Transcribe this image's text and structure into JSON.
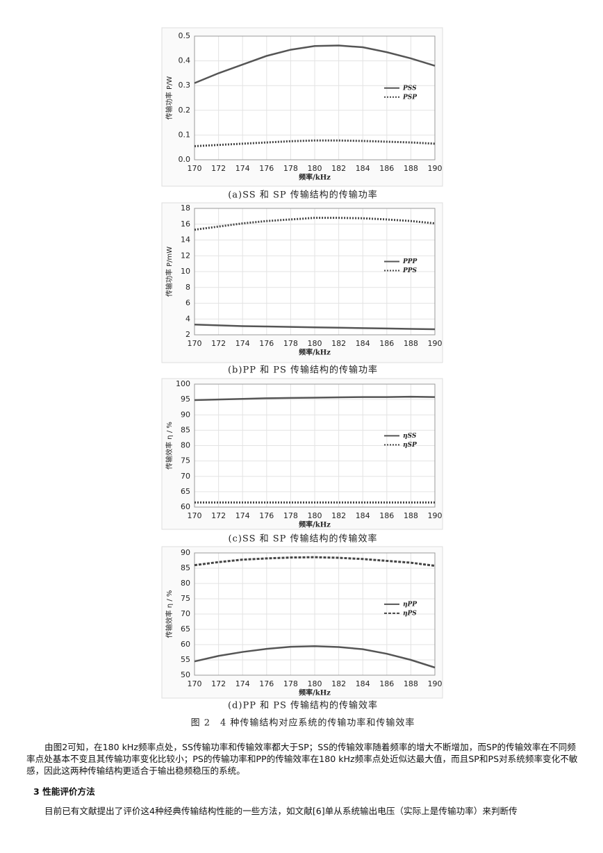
{
  "chart_data": [
    {
      "type": "line",
      "xlabel": "频率/kHz",
      "ylabel": "传输功率 P/W",
      "caption": "(a)SS 和 SP 传输结构的传输功率",
      "x": [
        170,
        172,
        174,
        176,
        178,
        180,
        182,
        184,
        186,
        188,
        190
      ],
      "xlim": [
        170,
        190
      ],
      "xticks": [
        170,
        172,
        174,
        176,
        178,
        180,
        182,
        184,
        186,
        188,
        190
      ],
      "ylim": [
        0,
        0.5
      ],
      "yticks": [
        {
          "value": 0,
          "label": "0.0"
        },
        0.1,
        0.2,
        0.3,
        0.4,
        0.5
      ],
      "grid": true,
      "legend": "right",
      "series": [
        {
          "name": "PSS",
          "color": "#555555",
          "line_style": "solid",
          "values": [
            0.31,
            0.35,
            0.385,
            0.42,
            0.445,
            0.46,
            0.462,
            0.455,
            0.435,
            0.41,
            0.38
          ]
        },
        {
          "name": "PSP",
          "color": "#444444",
          "line_style": "dotted",
          "values": [
            0.055,
            0.06,
            0.065,
            0.07,
            0.075,
            0.078,
            0.078,
            0.076,
            0.073,
            0.07,
            0.065
          ]
        }
      ]
    },
    {
      "type": "line",
      "xlabel": "频率/kHz",
      "ylabel": "传输功率 P/mW",
      "caption": "(b)PP 和 PS 传输结构的传输功率",
      "x": [
        170,
        172,
        174,
        176,
        178,
        180,
        182,
        184,
        186,
        188,
        190
      ],
      "xlim": [
        170,
        190
      ],
      "xticks": [
        170,
        172,
        174,
        176,
        178,
        180,
        182,
        184,
        186,
        188,
        190
      ],
      "ylim": [
        2,
        18
      ],
      "yticks": [
        2,
        4,
        6,
        8,
        10,
        12,
        14,
        16,
        18
      ],
      "grid": true,
      "legend": "right",
      "series": [
        {
          "name": "PPP",
          "color": "#555555",
          "line_style": "solid",
          "values": [
            3.3,
            3.2,
            3.1,
            3.05,
            3.0,
            2.95,
            2.9,
            2.85,
            2.8,
            2.75,
            2.7
          ]
        },
        {
          "name": "PPS",
          "color": "#444444",
          "line_style": "dotted",
          "values": [
            15.3,
            15.7,
            16.1,
            16.4,
            16.6,
            16.8,
            16.8,
            16.75,
            16.6,
            16.4,
            16.1
          ]
        }
      ]
    },
    {
      "type": "line",
      "xlabel": "频率/kHz",
      "ylabel": "传输效率 η / %",
      "caption": "(c)SS 和 SP 传输结构的传输效率",
      "x": [
        170,
        172,
        174,
        176,
        178,
        180,
        182,
        184,
        186,
        188,
        190
      ],
      "xlim": [
        170,
        190
      ],
      "xticks": [
        170,
        172,
        174,
        176,
        178,
        180,
        182,
        184,
        186,
        188,
        190
      ],
      "ylim": [
        60,
        100
      ],
      "yticks": [
        60,
        65,
        70,
        75,
        80,
        85,
        90,
        95,
        100
      ],
      "grid": true,
      "legend": "right",
      "series": [
        {
          "name": "ηSS",
          "color": "#555555",
          "line_style": "solid",
          "values": [
            94.8,
            95,
            95.2,
            95.4,
            95.5,
            95.6,
            95.7,
            95.8,
            95.8,
            95.9,
            95.8
          ]
        },
        {
          "name": "ηSP",
          "color": "#444444",
          "line_style": "dotted",
          "values": [
            61.5,
            61.5,
            61.5,
            61.5,
            61.5,
            61.5,
            61.5,
            61.5,
            61.5,
            61.5,
            61.5
          ]
        }
      ]
    },
    {
      "type": "line",
      "xlabel": "频率/kHz",
      "ylabel": "传输效率 η / %",
      "caption": "(d)PP 和 PS 传输结构的传输效率",
      "x": [
        170,
        172,
        174,
        176,
        178,
        180,
        182,
        184,
        186,
        188,
        190
      ],
      "xlim": [
        170,
        190
      ],
      "xticks": [
        170,
        172,
        174,
        176,
        178,
        180,
        182,
        184,
        186,
        188,
        190
      ],
      "ylim": [
        50,
        90
      ],
      "yticks": [
        50,
        55,
        60,
        65,
        70,
        75,
        80,
        85,
        90
      ],
      "grid": true,
      "legend": "right",
      "series": [
        {
          "name": "ηPP",
          "color": "#555555",
          "line_style": "solid",
          "values": [
            54.5,
            56.3,
            57.6,
            58.6,
            59.3,
            59.5,
            59.2,
            58.5,
            57,
            55,
            52.5
          ]
        },
        {
          "name": "ηPS",
          "color": "#444444",
          "line_style": "dashed",
          "values": [
            86,
            87,
            87.8,
            88.2,
            88.5,
            88.6,
            88.4,
            88,
            87.4,
            86.8,
            85.8
          ]
        }
      ]
    }
  ],
  "figure_caption": "图 2　4 种传输结构对应系统的传输功率和传输效率",
  "paragraphs": [
    "由图2可知，在180 kHz频率点处，SS传输功率和传输效率都大于SP；SS的传输效率随着频率的增大不断增加，而SP的传输效率在不同频率点处基本不变且其传输功率变化比较小；PS的传输功率和PP的传输效率在180 kHz频率点处近似达最大值，而且SP和PS对系统频率变化不敏感，因此这两种传输结构更适合于输出稳频稳压的系统。"
  ],
  "section_heading": "3 性能评价方法",
  "paragraphs_after": [
    "目前已有文献提出了评价这4种经典传输结构性能的一些方法，如文献[6]单从系统输出电压（实际上是传输功率）来判断传"
  ]
}
